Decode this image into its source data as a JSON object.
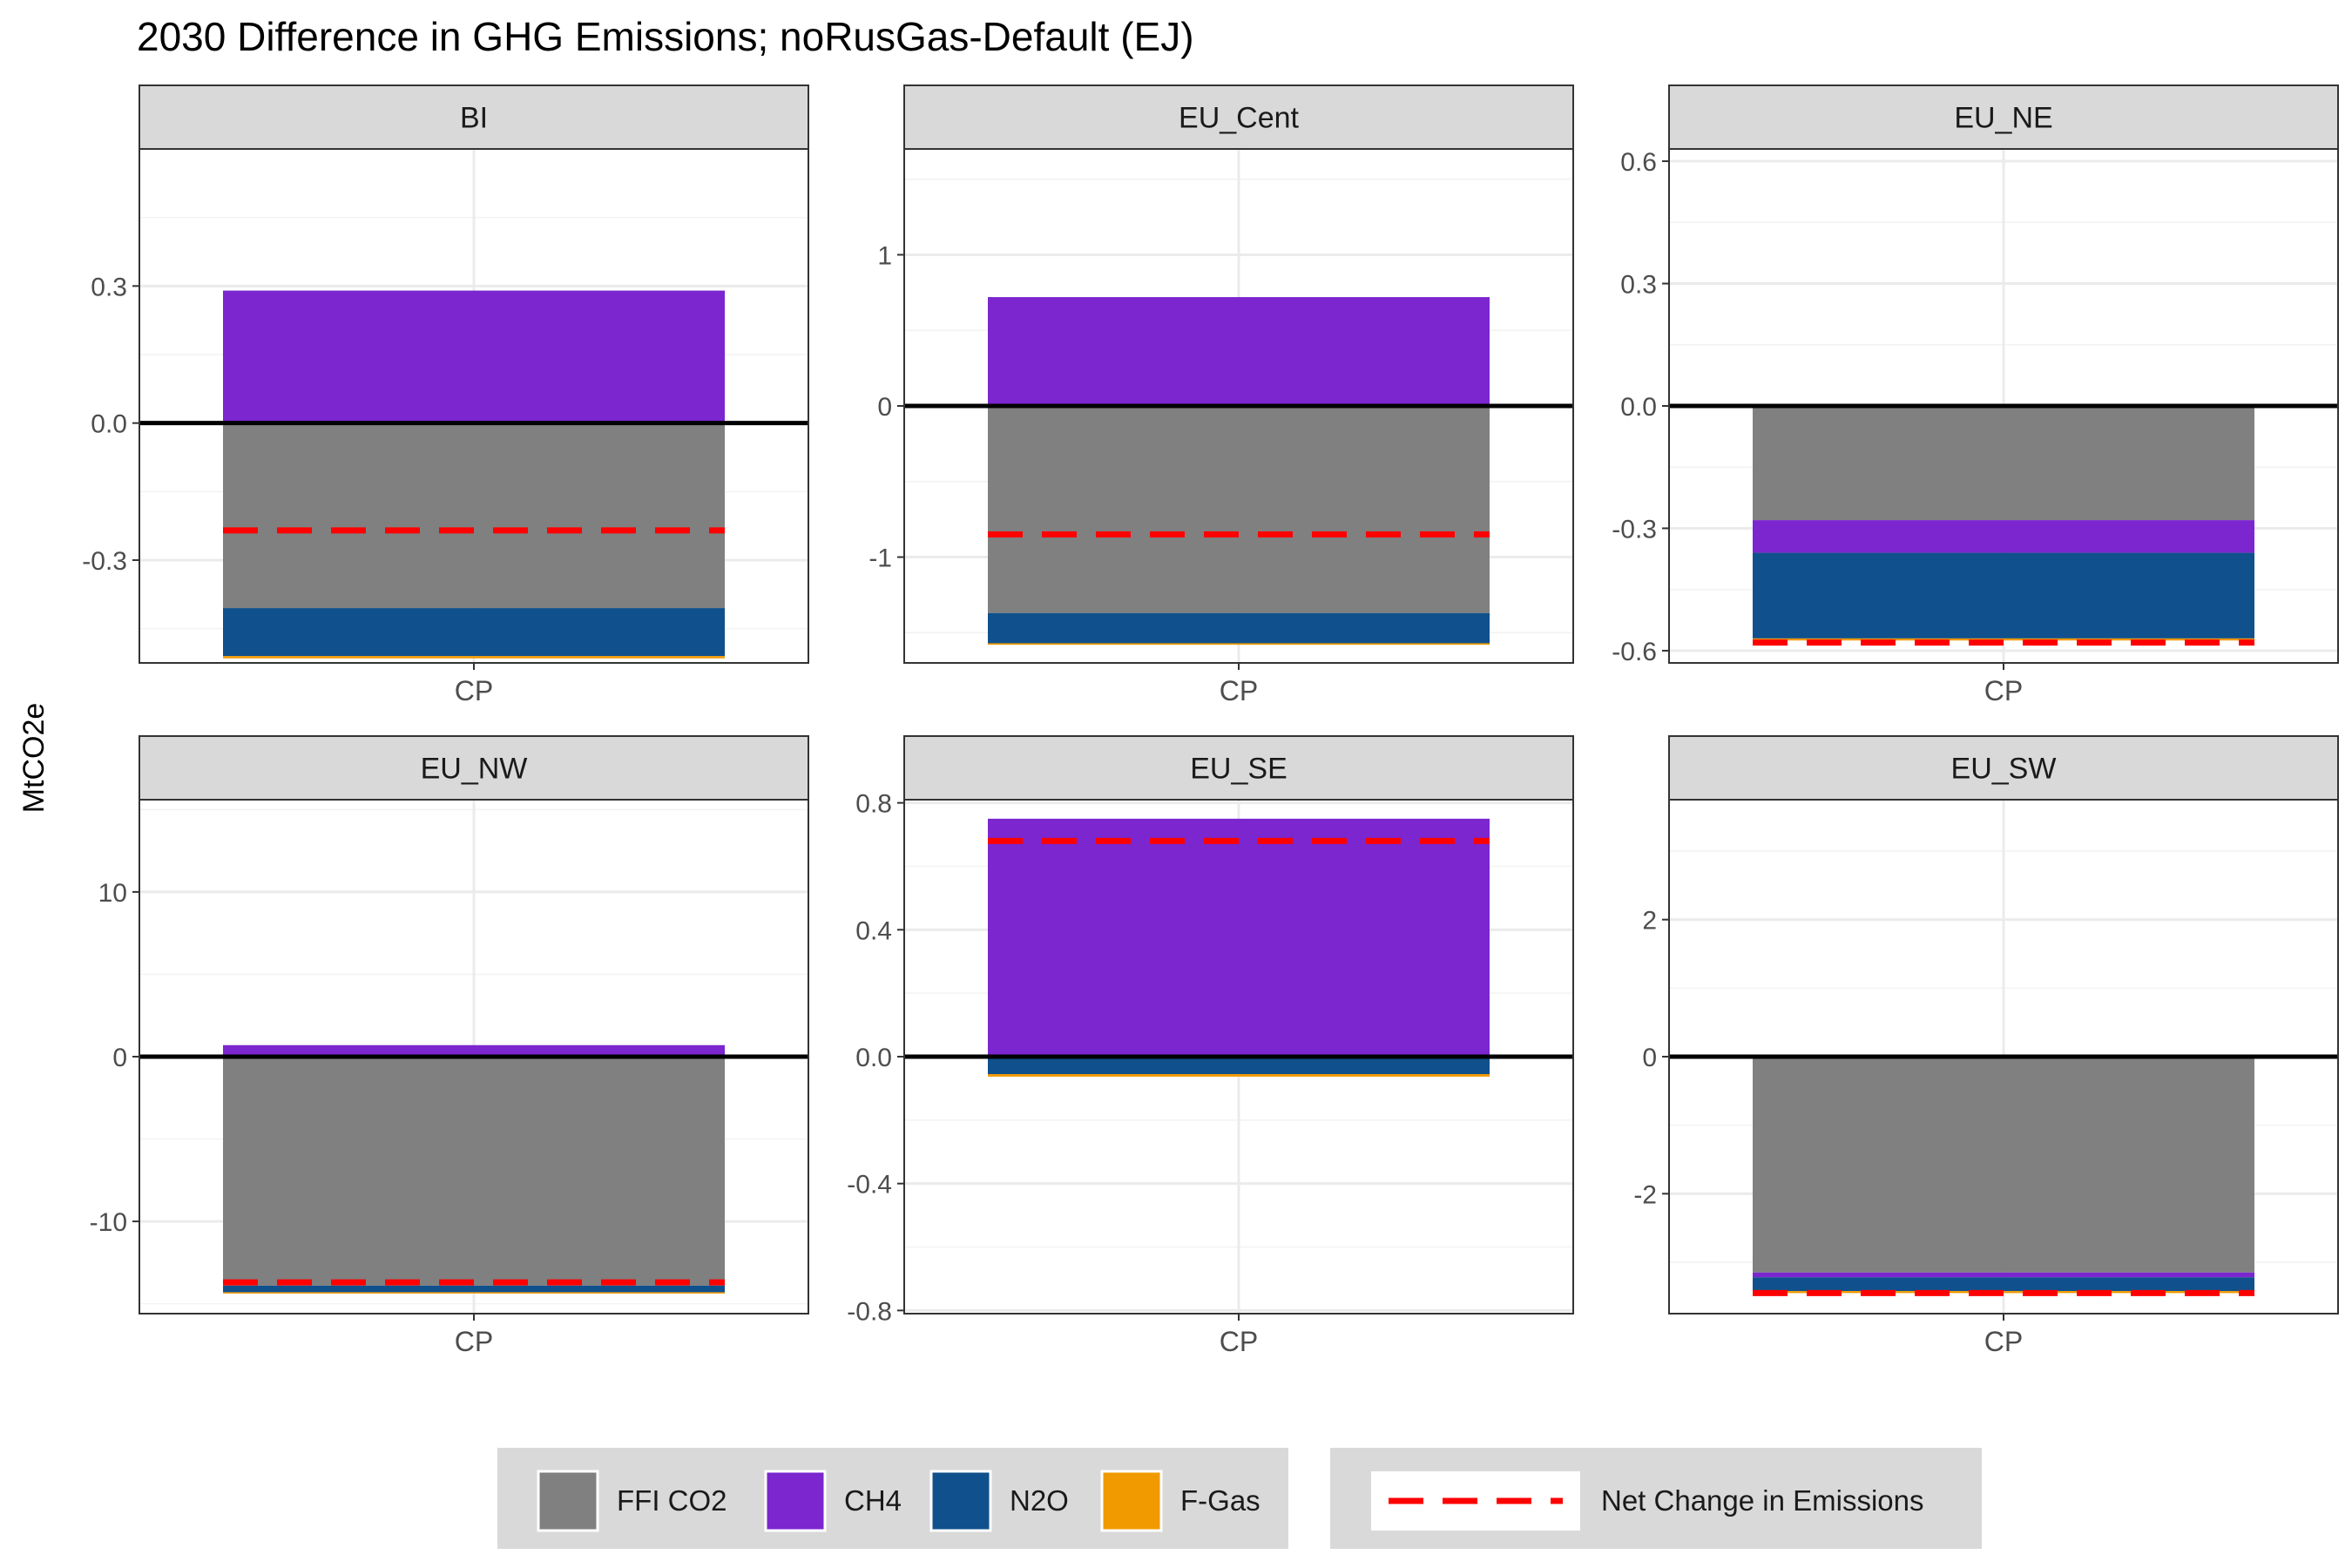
{
  "title": "2030 Difference in GHG Emissions; noRusGas-Default (EJ)",
  "ylabel": "MtCO2e",
  "legend": {
    "fill_title": "",
    "line_label": "Net Change in Emissions"
  },
  "colors": {
    "FFI CO2": "#808080",
    "CH4": "#7B26CF",
    "N2O": "#10508C",
    "F-Gas": "#F09A00",
    "net": "#FF0000"
  },
  "chart_data": {
    "type": "bar",
    "stacked": true,
    "facet_by": "region",
    "categories": [
      "CP"
    ],
    "series_order": [
      "FFI CO2",
      "CH4",
      "N2O",
      "F-Gas"
    ],
    "grid": true,
    "legend_position": "bottom",
    "panels": [
      {
        "region": "BI",
        "ylim": [
          -0.525,
          0.6
        ],
        "ticks": [
          -0.3,
          0.0,
          0.3
        ],
        "tick_labels": [
          "-0.3",
          "0.0",
          "0.3"
        ],
        "segments": [
          {
            "series": "CH4",
            "from": 0.0,
            "to": 0.29
          },
          {
            "series": "FFI CO2",
            "from": 0.0,
            "to": -0.405
          },
          {
            "series": "N2O",
            "from": -0.405,
            "to": -0.51
          },
          {
            "series": "F-Gas",
            "from": -0.51,
            "to": -0.515
          }
        ],
        "net": -0.235
      },
      {
        "region": "EU_Cent",
        "ylim": [
          -1.7,
          1.7
        ],
        "ticks": [
          -1,
          0,
          1
        ],
        "tick_labels": [
          "-1",
          "0",
          "1"
        ],
        "segments": [
          {
            "series": "CH4",
            "from": 0.0,
            "to": 0.72
          },
          {
            "series": "FFI CO2",
            "from": 0.0,
            "to": -1.37
          },
          {
            "series": "N2O",
            "from": -1.37,
            "to": -1.57
          },
          {
            "series": "F-Gas",
            "from": -1.57,
            "to": -1.58
          }
        ],
        "net": -0.85
      },
      {
        "region": "EU_NE",
        "ylim": [
          -0.63,
          0.63
        ],
        "ticks": [
          -0.6,
          -0.3,
          0.0,
          0.3,
          0.6
        ],
        "tick_labels": [
          "-0.6",
          "-0.3",
          "0.0",
          "0.3",
          "0.6"
        ],
        "segments": [
          {
            "series": "FFI CO2",
            "from": 0.0,
            "to": -0.28
          },
          {
            "series": "CH4",
            "from": -0.28,
            "to": -0.36
          },
          {
            "series": "N2O",
            "from": -0.36,
            "to": -0.57
          },
          {
            "series": "F-Gas",
            "from": -0.57,
            "to": -0.575
          }
        ],
        "net": -0.58
      },
      {
        "region": "EU_NW",
        "ylim": [
          -15.6,
          15.6
        ],
        "ticks": [
          -10,
          0,
          10
        ],
        "tick_labels": [
          "-10",
          "0",
          "10"
        ],
        "segments": [
          {
            "series": "CH4",
            "from": 0.0,
            "to": 0.7
          },
          {
            "series": "FFI CO2",
            "from": 0.0,
            "to": -13.9
          },
          {
            "series": "N2O",
            "from": -13.9,
            "to": -14.3
          },
          {
            "series": "F-Gas",
            "from": -14.3,
            "to": -14.35
          }
        ],
        "net": -13.7
      },
      {
        "region": "EU_SE",
        "ylim": [
          -0.81,
          0.81
        ],
        "ticks": [
          -0.8,
          -0.4,
          0.0,
          0.4,
          0.8
        ],
        "tick_labels": [
          "-0.8",
          "-0.4",
          "0.0",
          "0.4",
          "0.8"
        ],
        "segments": [
          {
            "series": "CH4",
            "from": 0.0,
            "to": 0.75
          },
          {
            "series": "FFI CO2",
            "from": 0.0,
            "to": -0.002
          },
          {
            "series": "N2O",
            "from": -0.002,
            "to": -0.055
          },
          {
            "series": "F-Gas",
            "from": -0.055,
            "to": -0.063
          }
        ],
        "net": 0.68
      },
      {
        "region": "EU_SW",
        "ylim": [
          -3.75,
          3.75
        ],
        "ticks": [
          -2,
          0,
          2
        ],
        "tick_labels": [
          "-2",
          "0",
          "2"
        ],
        "segments": [
          {
            "series": "FFI CO2",
            "from": 0.0,
            "to": -3.15
          },
          {
            "series": "CH4",
            "from": -3.15,
            "to": -3.22
          },
          {
            "series": "N2O",
            "from": -3.22,
            "to": -3.42
          },
          {
            "series": "F-Gas",
            "from": -3.42,
            "to": -3.45
          }
        ],
        "net": -3.45
      }
    ]
  }
}
